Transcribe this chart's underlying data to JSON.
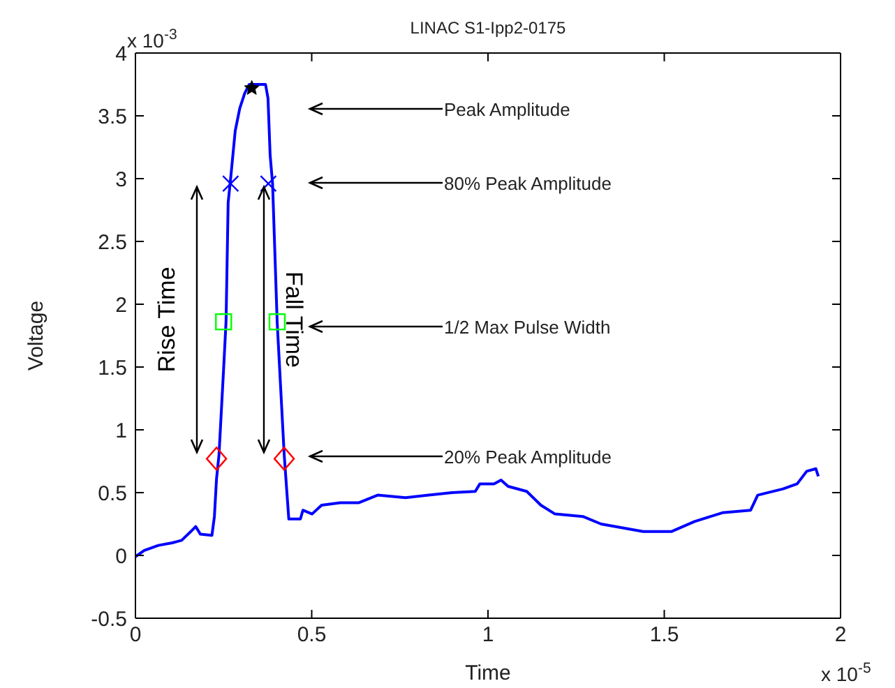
{
  "chart_data": {
    "type": "line",
    "title": "LINAC S1-Ipp2-0175",
    "xlabel": "Time",
    "ylabel": "Voltage",
    "xlim": [
      0,
      2
    ],
    "xticks": [
      0,
      0.5,
      1,
      1.5,
      2
    ],
    "ylim": [
      -0.5,
      4
    ],
    "yticks": [
      -0.5,
      0,
      0.5,
      1,
      1.5,
      2,
      2.5,
      3,
      3.5,
      4
    ],
    "series": [
      {
        "color": "#0000ff",
        "x": [
          0,
          0.025,
          0.065,
          0.104,
          0.131,
          0.157,
          0.171,
          0.184,
          0.217,
          0.224,
          0.23,
          0.237,
          0.25,
          0.257,
          0.263,
          0.27,
          0.283,
          0.296,
          0.31,
          0.323,
          0.369,
          0.376,
          0.382,
          0.389,
          0.402,
          0.422,
          0.435,
          0.468,
          0.475,
          0.501,
          0.528,
          0.581,
          0.634,
          0.687,
          0.766,
          0.832,
          0.898,
          0.964,
          0.977,
          1.017,
          1.037,
          1.057,
          1.11,
          1.15,
          1.19,
          1.269,
          1.321,
          1.44,
          1.52,
          1.586,
          1.665,
          1.745,
          1.765,
          1.837,
          1.877,
          1.904,
          1.93,
          1.937
        ],
        "values": [
          -0.01,
          0.04,
          0.08,
          0.1,
          0.12,
          0.19,
          0.23,
          0.17,
          0.16,
          0.31,
          0.61,
          0.8,
          1.48,
          1.86,
          2.81,
          3.0,
          3.38,
          3.56,
          3.68,
          3.75,
          3.75,
          3.64,
          3.19,
          2.96,
          1.86,
          0.8,
          0.29,
          0.29,
          0.36,
          0.33,
          0.4,
          0.42,
          0.42,
          0.48,
          0.46,
          0.48,
          0.5,
          0.51,
          0.57,
          0.57,
          0.6,
          0.55,
          0.51,
          0.4,
          0.33,
          0.31,
          0.25,
          0.19,
          0.19,
          0.27,
          0.34,
          0.36,
          0.48,
          0.53,
          0.57,
          0.67,
          0.69,
          0.63
        ]
      },
      {
        "type": "scatter",
        "color": "#000000",
        "marker": "star",
        "x": [
          0.33
        ],
        "values": [
          3.72
        ]
      },
      {
        "type": "scatter",
        "color": "#0000ff",
        "marker": "cross",
        "x": [
          0.27,
          0.377
        ],
        "values": [
          2.96,
          2.96
        ]
      },
      {
        "type": "scatter",
        "color": "#00ff00",
        "marker": "square",
        "x": [
          0.25,
          0.402
        ],
        "values": [
          1.86,
          1.86
        ]
      },
      {
        "type": "scatter",
        "color": "#ff0000",
        "marker": "diamond",
        "x": [
          0.23,
          0.422
        ],
        "values": [
          0.77,
          0.77
        ]
      }
    ],
    "annotations": [
      "Peak Amplitude",
      "80% Peak Amplitude",
      "1/2 Max Pulse Width",
      "20% Peak Amplitude",
      "Rise Time",
      "Fall Time",
      "x 10$^{-3}$",
      "x 10$^{-5}$"
    ]
  }
}
